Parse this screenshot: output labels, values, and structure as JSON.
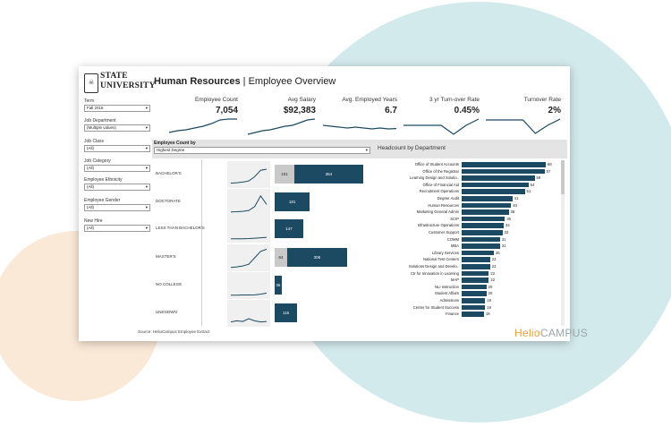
{
  "colors": {
    "accent": "#1c4a63",
    "gray_bar": "#c9c9c9",
    "bg_blue": "#d3eaec",
    "bg_peach": "#fbe9d7",
    "brand_orange": "#e9a13b"
  },
  "logo": {
    "line1": "STATE",
    "line2": "UNIVERSITY",
    "icon": "university-seal-icon"
  },
  "header": {
    "title_bold": "Human Resources",
    "title_rest": " | Employee Overview"
  },
  "filters": [
    {
      "label": "Term",
      "value": "Fall 2016"
    },
    {
      "label": "Job Department",
      "value": "(Multiple values)"
    },
    {
      "label": "Job Class",
      "value": "(All)"
    },
    {
      "label": "Job Category",
      "value": "(All)"
    },
    {
      "label": "Employee Ethnicity",
      "value": "(All)"
    },
    {
      "label": "Employee Gender",
      "value": "(All)"
    },
    {
      "label": "New Hire",
      "value": "(All)"
    }
  ],
  "kpis": [
    {
      "label": "Employee Count",
      "value": "7,054",
      "trend": [
        0.2,
        0.3,
        0.35,
        0.45,
        0.55,
        0.7,
        0.9,
        0.95,
        0.95
      ]
    },
    {
      "label": "Avg Salary",
      "value": "$92,383",
      "trend": [
        0.1,
        0.2,
        0.3,
        0.35,
        0.45,
        0.55,
        0.6,
        0.75,
        0.9,
        0.95
      ]
    },
    {
      "label": "Avg. Employed Years",
      "value": "6.7",
      "trend": [
        0.6,
        0.55,
        0.5,
        0.45,
        0.5,
        0.45,
        0.4,
        0.45,
        0.4,
        0.42
      ]
    },
    {
      "label": "3 yr Turn-over Rate",
      "value": "0.45%",
      "trend": [
        0.6,
        0.6,
        0.6,
        0.6,
        0.1,
        0.6,
        0.95
      ]
    },
    {
      "label": "Turnover Rate",
      "value": "2%",
      "trend": [
        0.9,
        0.9,
        0.9,
        0.9,
        0.15,
        0.6,
        0.95
      ]
    }
  ],
  "employee_count_by": {
    "label": "Employee Count by",
    "selected": "Highest Degree"
  },
  "degrees": [
    {
      "label": "BACHELOR'S",
      "gray": 101,
      "teal": 354,
      "trend": [
        0.1,
        0.12,
        0.15,
        0.2,
        0.4,
        0.7,
        0.75
      ]
    },
    {
      "label": "DOCTORATE",
      "gray": 0,
      "teal": 181,
      "trend": [
        0.05,
        0.06,
        0.08,
        0.12,
        0.3,
        0.8,
        0.4
      ]
    },
    {
      "label": "LESS THAN BACHELOR'S",
      "gray": 0,
      "teal": 147,
      "trend": [
        0.05,
        0.05,
        0.05,
        0.06,
        0.08,
        0.1,
        0.12
      ]
    },
    {
      "label": "MASTER'S",
      "gray": 64,
      "teal": 308,
      "trend": [
        0.05,
        0.08,
        0.12,
        0.2,
        0.5,
        0.8,
        0.9
      ]
    },
    {
      "label": "NO COLLEGE",
      "gray": 0,
      "teal": 36,
      "trend": [
        0.05,
        0.05,
        0.06,
        0.06,
        0.07,
        0.1,
        0.15
      ]
    },
    {
      "label": "UNKNOWN",
      "gray": 0,
      "teal": 115,
      "trend": [
        0.1,
        0.15,
        0.12,
        0.25,
        0.15,
        0.1,
        0.12
      ]
    }
  ],
  "headcount": {
    "title": "Headcount by Department",
    "max": 68,
    "departments": [
      {
        "name": "Office of Student Accounts",
        "value": 68
      },
      {
        "name": "Office of the Registrar",
        "value": 67
      },
      {
        "name": "Learning Design and Solutio..",
        "value": 59
      },
      {
        "name": "Office of Financial Aid",
        "value": 54
      },
      {
        "name": "Recruitment Operations",
        "value": 51
      },
      {
        "name": "Degree Audit",
        "value": 41
      },
      {
        "name": "Human Resources",
        "value": 40
      },
      {
        "name": "Marketing General Admin",
        "value": 38
      },
      {
        "name": "SCIP",
        "value": 35
      },
      {
        "name": "Infrastructure Operations",
        "value": 34
      },
      {
        "name": "Customer Support",
        "value": 33
      },
      {
        "name": "COMM",
        "value": 31
      },
      {
        "name": "MBA",
        "value": 31
      },
      {
        "name": "Library Services",
        "value": 26
      },
      {
        "name": "National Test Centers",
        "value": 23
      },
      {
        "name": "Solutions Design and Develo..",
        "value": 23
      },
      {
        "name": "Ctr for Innovation in Learning",
        "value": 22
      },
      {
        "name": "MAP",
        "value": 22
      },
      {
        "name": "NLI Instruction",
        "value": 20
      },
      {
        "name": "Student Affairs",
        "value": 20
      },
      {
        "name": "Admissions",
        "value": 19
      },
      {
        "name": "Center for Student Success",
        "value": 19
      },
      {
        "name": "Finance",
        "value": 18
      }
    ]
  },
  "footer": {
    "source": "Source: HelioCampus Employee Extract",
    "brand_a": "Helio",
    "brand_b": "CAMPUS"
  }
}
